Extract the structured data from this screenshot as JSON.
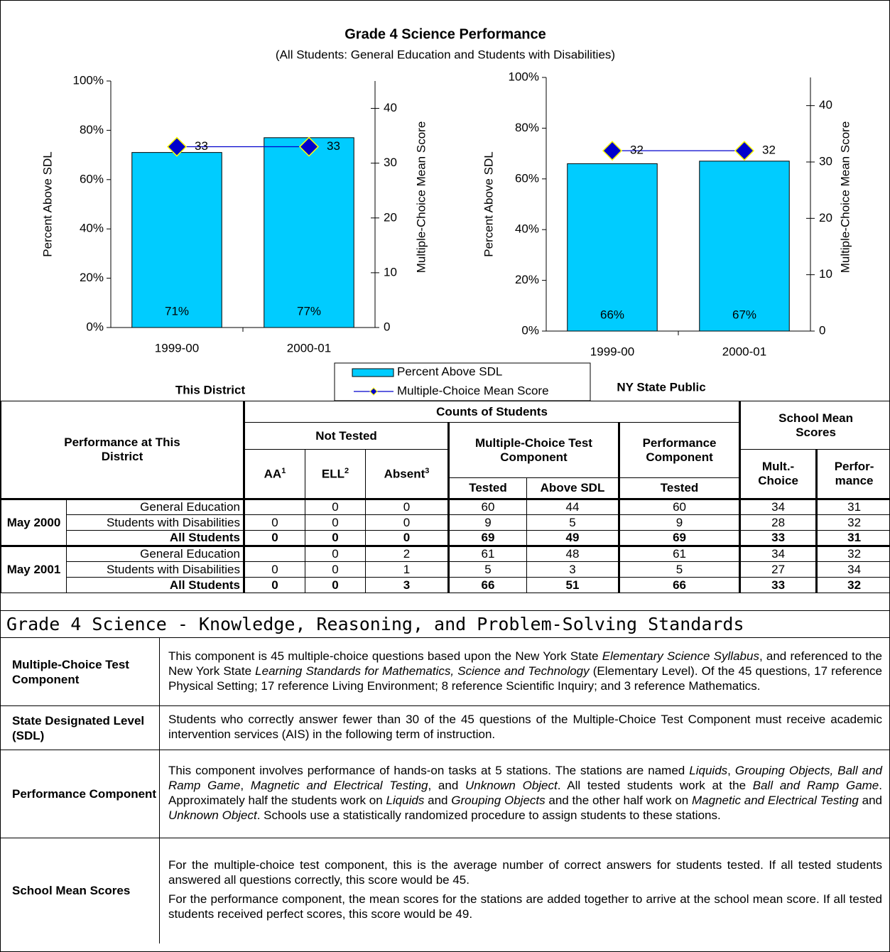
{
  "header": {
    "title": "Grade 4 Science Performance",
    "subtitle": "(All Students: General Education and Students with Disabilities)"
  },
  "chart_data": [
    {
      "type": "bar",
      "caption": "This District",
      "ylabel": "Percent Above SDL",
      "y2label": "Multiple-Choice Mean Score",
      "categories": [
        "1999-00",
        "2000-01"
      ],
      "series": [
        {
          "name": "Percent Above SDL",
          "color": "#00ccff",
          "values": [
            71,
            77
          ],
          "value_labels": [
            "71%",
            "77%"
          ]
        },
        {
          "name": "Multiple-Choice Mean Score",
          "color": "#0000cc",
          "axis": "y2",
          "values": [
            33,
            33
          ]
        }
      ],
      "ylim": [
        0,
        100
      ],
      "yticks": [
        {
          "value": 0,
          "label": "0%"
        },
        {
          "value": 20,
          "label": "20%"
        },
        {
          "value": 40,
          "label": "40%"
        },
        {
          "value": 60,
          "label": "60%"
        },
        {
          "value": 80,
          "label": "80%"
        },
        {
          "value": 100,
          "label": "100%"
        }
      ],
      "y2lim": [
        0,
        45
      ],
      "y2ticks": [
        0,
        10,
        20,
        30,
        40
      ]
    },
    {
      "type": "bar",
      "caption": "NY State Public",
      "ylabel": "Percent Above SDL",
      "y2label": "Multiple-Choice Mean Score",
      "categories": [
        "1999-00",
        "2000-01"
      ],
      "series": [
        {
          "color": "#00ccff",
          "values": [
            66,
            67
          ],
          "value_labels": [
            "66%",
            "67%"
          ]
        },
        {
          "color": "#0000cc",
          "axis": "y2",
          "values": [
            32,
            32
          ]
        }
      ],
      "ylim": [
        0,
        100
      ],
      "yticks": [
        {
          "value": 0,
          "label": "0%"
        },
        {
          "value": 20,
          "label": "20%"
        },
        {
          "value": 40,
          "label": "40%"
        },
        {
          "value": 60,
          "label": "60%"
        },
        {
          "value": 80,
          "label": "80%"
        },
        {
          "value": 100,
          "label": "100%"
        }
      ],
      "y2lim": [
        0,
        45
      ],
      "y2ticks": [
        0,
        10,
        20,
        30,
        40
      ]
    }
  ],
  "table": {
    "corner": "Performance at This District",
    "counts": "Counts of Students",
    "not_tested": "Not Tested",
    "aa": {
      "text": "AA",
      "note": 1
    },
    "ell": {
      "text": "ELL",
      "note": 2
    },
    "absent": {
      "text": "Absent",
      "note": 3
    },
    "mc_component": "Multiple-Choice Test Component",
    "perf_component": "Performance Component",
    "tested": "Tested",
    "above_sdl": "Above SDL",
    "mean_scores": "School Mean Scores",
    "mult_choice": "Mult.-Choice",
    "performance": "Perfor-mance",
    "groups": [
      {
        "label": "May 2000",
        "rows": [
          {
            "label": "General Education",
            "cells": [
              null,
              0,
              0,
              60,
              44,
              60,
              34,
              31
            ]
          },
          {
            "label": "Students with Disabilities",
            "cells": [
              0,
              0,
              0,
              9,
              5,
              9,
              28,
              32
            ]
          },
          {
            "label": "All Students",
            "cells": [
              0,
              0,
              0,
              69,
              49,
              69,
              33,
              31
            ]
          }
        ]
      },
      {
        "label": "May 2001",
        "rows": [
          {
            "label": "General Education",
            "cells": [
              null,
              0,
              2,
              61,
              48,
              61,
              34,
              32
            ]
          },
          {
            "label": "Students with Disabilities",
            "cells": [
              0,
              0,
              1,
              5,
              3,
              5,
              27,
              34
            ]
          },
          {
            "label": "All Students",
            "cells": [
              0,
              0,
              3,
              66,
              51,
              66,
              33,
              32
            ]
          }
        ]
      }
    ]
  },
  "standards": {
    "title": "Grade 4 Science - Knowledge, Reasoning, and Problem-Solving Standards",
    "rows": [
      {
        "term": "Multiple-Choice Test Component",
        "paragraphs": [
          [
            "This component is 45 multiple-choice questions based upon the New York State ",
            "Elementary Science Syllabus",
            ", and referenced to the New York State ",
            "Learning Standards for Mathematics, Science and Technology",
            " (Elementary Level). Of the 45 questions, 17 reference Physical Setting; 17 reference Living Environment; 8 reference Scientific Inquiry; and 3 reference Mathematics."
          ]
        ]
      },
      {
        "term": "State Designated Level (SDL)",
        "paragraphs": [
          [
            "Students who correctly answer fewer than 30 of the 45 questions of the Multiple-Choice Test Component must receive academic intervention services (AIS) in the following term of instruction."
          ]
        ]
      },
      {
        "term": "Performance Component",
        "paragraphs": [
          [
            "This component involves performance of hands-on tasks at 5 stations. The stations are named ",
            "Liquids",
            ", ",
            "Grouping Objects, Ball and Ramp Game",
            ", ",
            "Magnetic and Electrical Testing",
            ", and ",
            "Unknown Object",
            ".  All tested students work at the ",
            "Ball and Ramp Game",
            ". Approximately half the students work on ",
            "Liquids",
            " and ",
            "Grouping Objects",
            " and the other half work on ",
            "Magnetic and Electrical Testing",
            " and ",
            "Unknown Object",
            ". Schools use a statistically randomized procedure to assign students to these stations."
          ]
        ]
      },
      {
        "term": "School Mean Scores",
        "paragraphs": [
          [
            "For the multiple-choice test component, this is the average number of correct answers for students tested. If all tested students answered all questions correctly, this score would be 45."
          ],
          [
            "For the performance component, the mean scores for the stations are added together to arrive at the school mean score. If all tested students received perfect scores, this score would be 49."
          ]
        ]
      }
    ]
  }
}
